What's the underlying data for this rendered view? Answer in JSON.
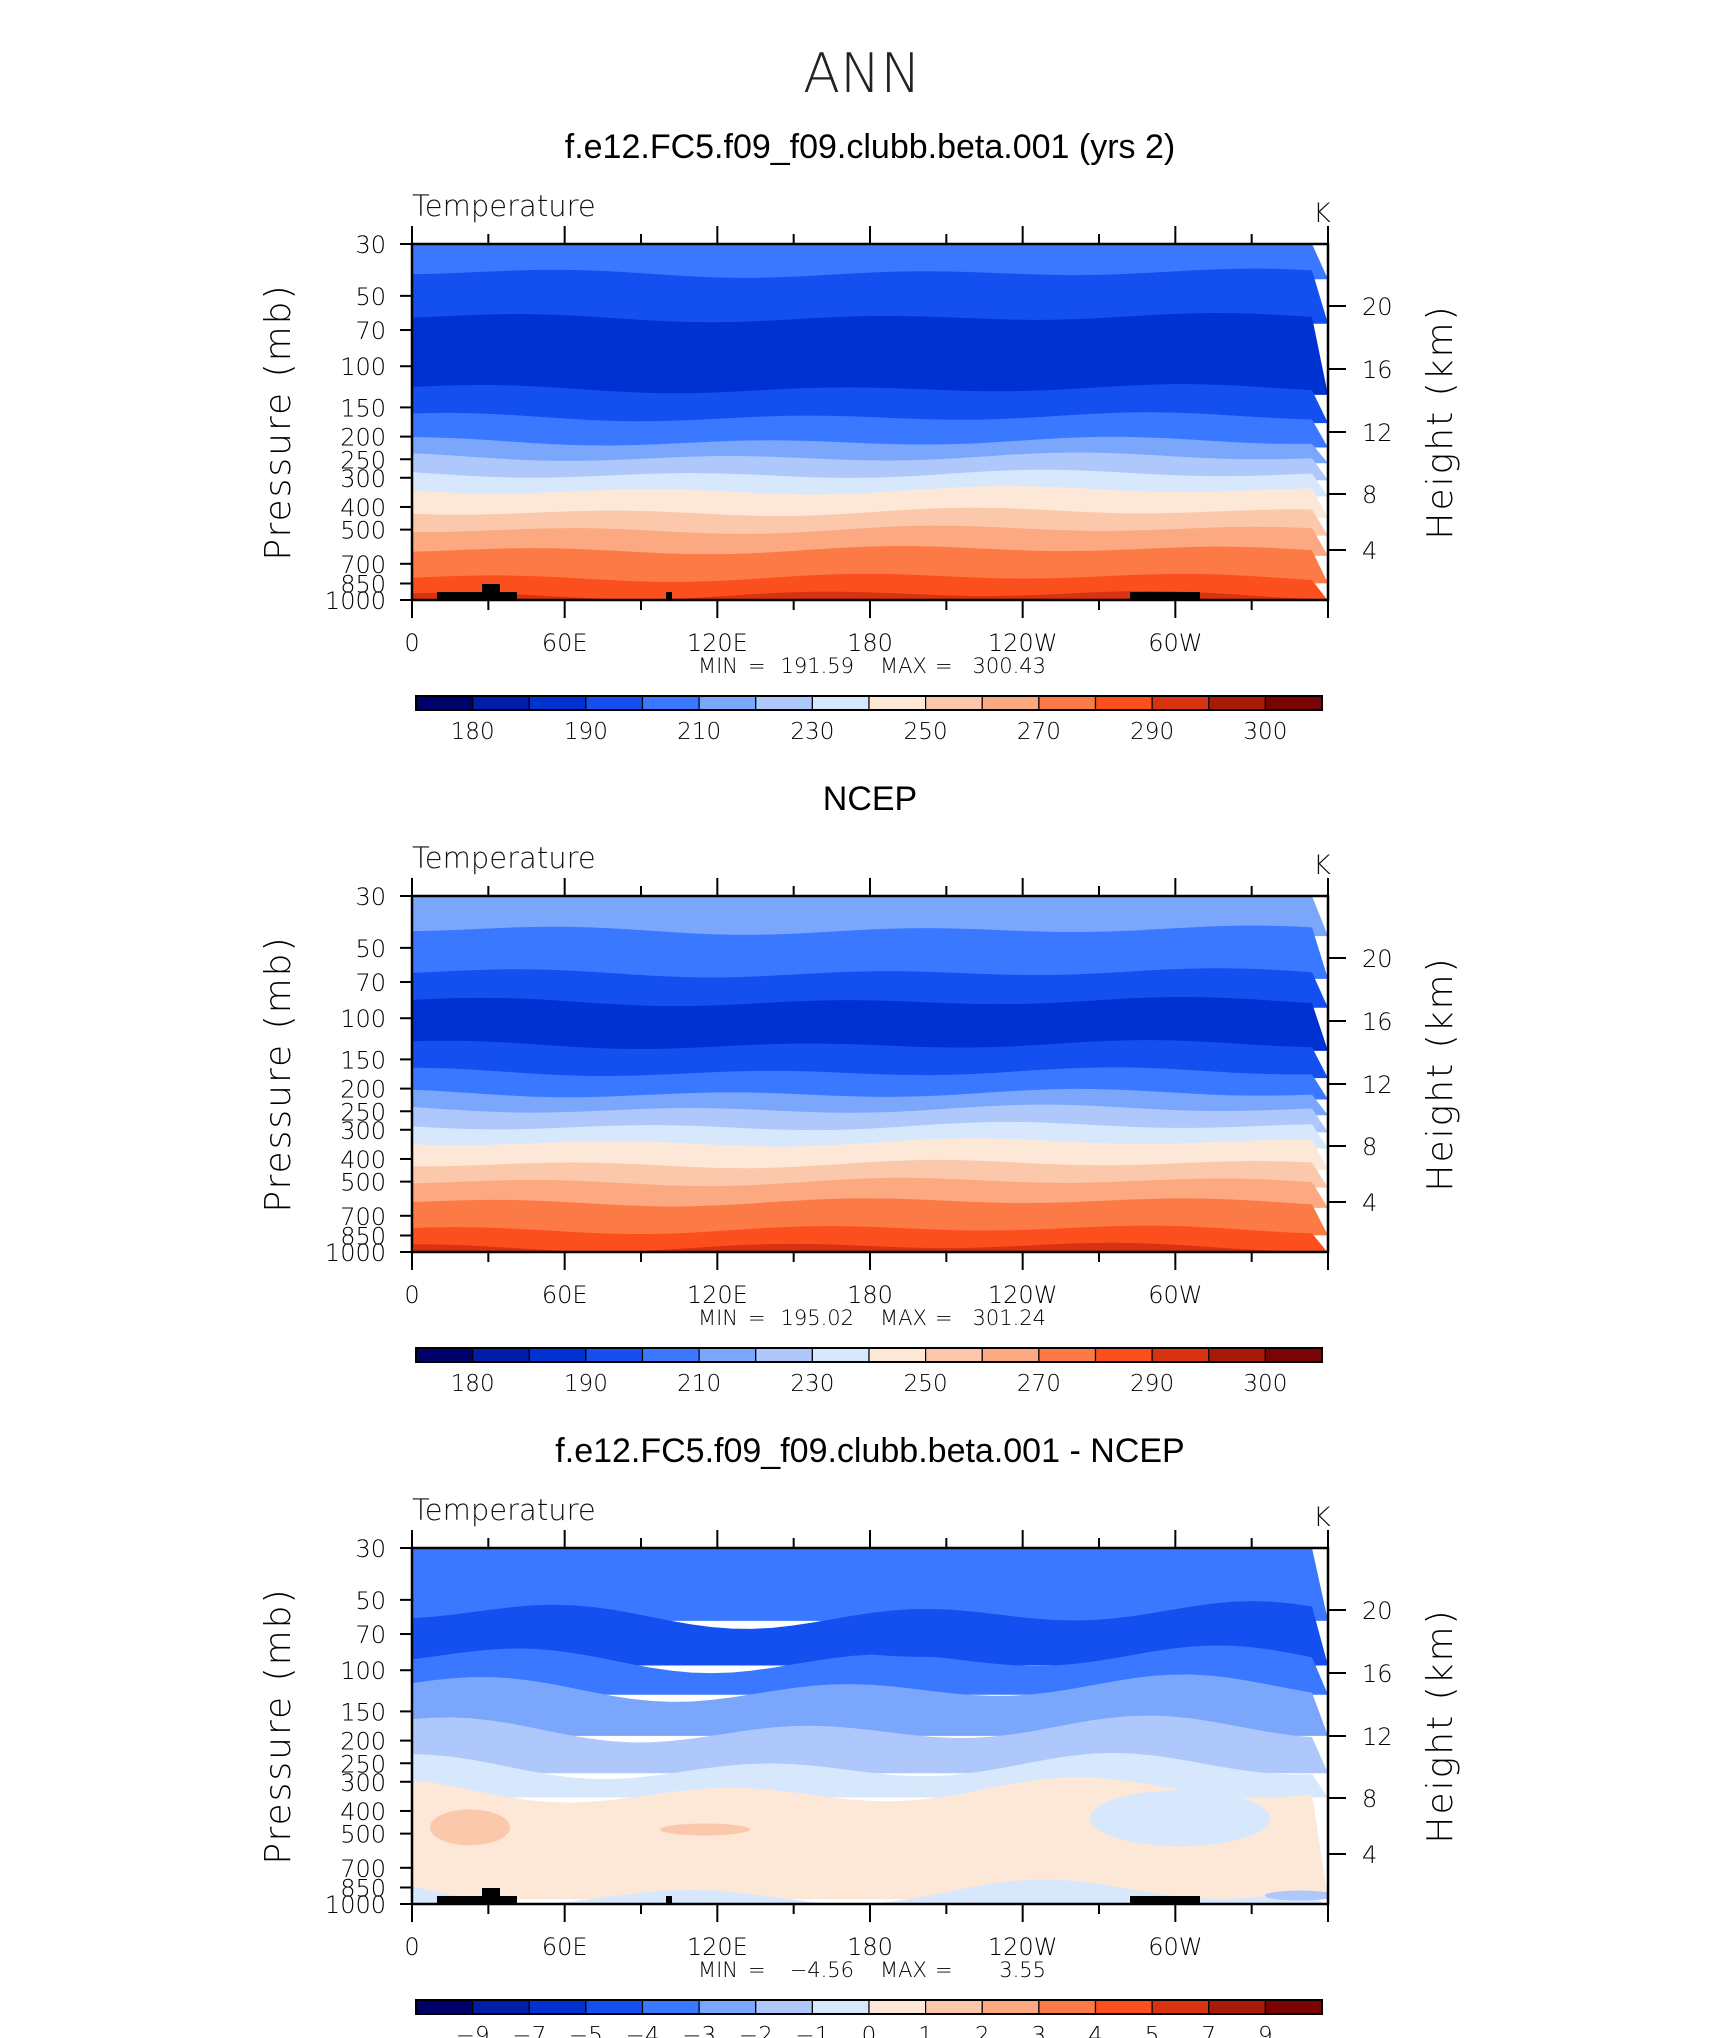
{
  "page_title": "ANN",
  "chart_data": [
    {
      "type": "heatmap",
      "title": "f.e12.FC5.f09_f09.clubb.beta.001 (yrs 2)",
      "subtitle_left": "Temperature",
      "units": "K",
      "ylabel": "Pressure (mb)",
      "ylabel_right": "Height (km)",
      "x_ticks": [
        "0",
        "60E",
        "120E",
        "180",
        "120W",
        "60W"
      ],
      "y_ticks": [
        "30",
        "50",
        "70",
        "100",
        "150",
        "200",
        "250",
        "300",
        "400",
        "500",
        "700",
        "850",
        "1000"
      ],
      "y_right_ticks": [
        "20",
        "16",
        "12",
        "8",
        "4"
      ],
      "stats": {
        "min_label": "MIN",
        "min": "191.59",
        "max_label": "MAX",
        "max": "300.43"
      },
      "colorbar_labels": [
        "180",
        "190",
        "210",
        "230",
        "250",
        "270",
        "290",
        "300"
      ],
      "bands": [
        {
          "p_top": 30,
          "p_bot": 40,
          "level": 4
        },
        {
          "p_top": 40,
          "p_bot": 62,
          "level": 3
        },
        {
          "p_top": 62,
          "p_bot": 125,
          "level": 2
        },
        {
          "p_top": 125,
          "p_bot": 165,
          "level": 3
        },
        {
          "p_top": 165,
          "p_bot": 210,
          "level": 4
        },
        {
          "p_top": 210,
          "p_bot": 245,
          "level": 5
        },
        {
          "p_top": 245,
          "p_bot": 290,
          "level": 6
        },
        {
          "p_top": 290,
          "p_bot": 340,
          "level": 7
        },
        {
          "p_top": 340,
          "p_bot": 420,
          "level": 8
        },
        {
          "p_top": 420,
          "p_bot": 500,
          "level": 9
        },
        {
          "p_top": 500,
          "p_bot": 610,
          "level": 10
        },
        {
          "p_top": 610,
          "p_bot": 800,
          "level": 11
        },
        {
          "p_top": 800,
          "p_bot": 950,
          "level": 12
        },
        {
          "p_top": 950,
          "p_bot": 1000,
          "level": 13
        }
      ],
      "topography": true
    },
    {
      "type": "heatmap",
      "title": "NCEP",
      "subtitle_left": "Temperature",
      "units": "K",
      "ylabel": "Pressure (mb)",
      "ylabel_right": "Height (km)",
      "x_ticks": [
        "0",
        "60E",
        "120E",
        "180",
        "120W",
        "60W"
      ],
      "y_ticks": [
        "30",
        "50",
        "70",
        "100",
        "150",
        "200",
        "250",
        "300",
        "400",
        "500",
        "700",
        "850",
        "1000"
      ],
      "y_right_ticks": [
        "20",
        "16",
        "12",
        "8",
        "4"
      ],
      "stats": {
        "min_label": "MIN",
        "min": "195.02",
        "max_label": "MAX",
        "max": "301.24"
      },
      "colorbar_labels": [
        "180",
        "190",
        "210",
        "230",
        "250",
        "270",
        "290",
        "300"
      ],
      "bands": [
        {
          "p_top": 30,
          "p_bot": 42,
          "level": 5
        },
        {
          "p_top": 42,
          "p_bot": 64,
          "level": 4
        },
        {
          "p_top": 64,
          "p_bot": 85,
          "level": 3
        },
        {
          "p_top": 85,
          "p_bot": 130,
          "level": 2
        },
        {
          "p_top": 130,
          "p_bot": 170,
          "level": 3
        },
        {
          "p_top": 170,
          "p_bot": 210,
          "level": 4
        },
        {
          "p_top": 210,
          "p_bot": 245,
          "level": 5
        },
        {
          "p_top": 245,
          "p_bot": 290,
          "level": 6
        },
        {
          "p_top": 290,
          "p_bot": 340,
          "level": 7
        },
        {
          "p_top": 340,
          "p_bot": 420,
          "level": 8
        },
        {
          "p_top": 420,
          "p_bot": 500,
          "level": 9
        },
        {
          "p_top": 500,
          "p_bot": 610,
          "level": 10
        },
        {
          "p_top": 610,
          "p_bot": 800,
          "level": 11
        },
        {
          "p_top": 800,
          "p_bot": 950,
          "level": 12
        },
        {
          "p_top": 950,
          "p_bot": 1000,
          "level": 13
        }
      ],
      "topography": false
    },
    {
      "type": "heatmap",
      "title": "f.e12.FC5.f09_f09.clubb.beta.001 - NCEP",
      "subtitle_left": "Temperature",
      "units": "K",
      "ylabel": "Pressure (mb)",
      "ylabel_right": "Height (km)",
      "x_ticks": [
        "0",
        "60E",
        "120E",
        "180",
        "120W",
        "60W"
      ],
      "y_ticks": [
        "30",
        "50",
        "70",
        "100",
        "150",
        "200",
        "250",
        "300",
        "400",
        "500",
        "700",
        "850",
        "1000"
      ],
      "y_right_ticks": [
        "20",
        "16",
        "12",
        "8",
        "4"
      ],
      "stats": {
        "min_label": "MIN",
        "min": "−4.56",
        "max_label": "MAX",
        "max": "3.55"
      },
      "colorbar_labels": [
        "−9",
        "−7",
        "−5",
        "−4",
        "−3",
        "−2",
        "−1",
        "0",
        "1",
        "2",
        "3",
        "4",
        "5",
        "7",
        "9"
      ],
      "bands": [
        {
          "p_top": 30,
          "p_bot": 58,
          "level": 4
        },
        {
          "p_top": 58,
          "p_bot": 90,
          "level": 3
        },
        {
          "p_top": 90,
          "p_bot": 120,
          "level": 4
        },
        {
          "p_top": 120,
          "p_bot": 180,
          "level": 5
        },
        {
          "p_top": 180,
          "p_bot": 260,
          "level": 6
        },
        {
          "p_top": 260,
          "p_bot": 330,
          "level": 7
        },
        {
          "p_top": 330,
          "p_bot": 900,
          "level": 8
        },
        {
          "p_top": 900,
          "p_bot": 1000,
          "level": 7
        }
      ],
      "topography": true
    }
  ],
  "colors": {
    "palette": [
      "#00006a",
      "#001ea8",
      "#0032d2",
      "#1450f0",
      "#3a78ff",
      "#7aa6fc",
      "#aec8fc",
      "#d8e8fc",
      "#fde8d8",
      "#fcc8ac",
      "#fca880",
      "#fc7a46",
      "#fc4f1e",
      "#d83212",
      "#a81a08",
      "#7a0404"
    ]
  }
}
